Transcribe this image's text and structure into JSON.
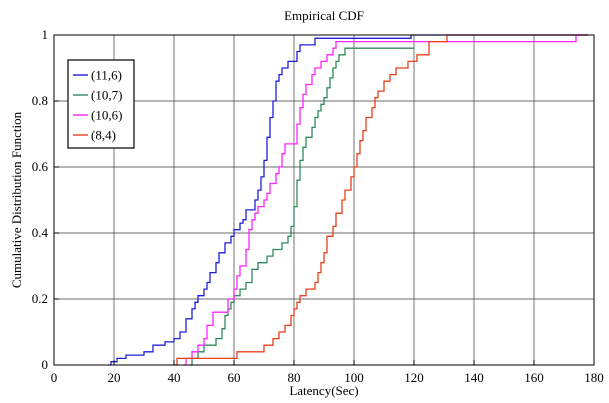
{
  "chart_data": {
    "type": "line",
    "title": "Empirical CDF",
    "xlabel": "Latency(Sec)",
    "ylabel": "Cumulative Distribution Function",
    "xlim": [
      0,
      180
    ],
    "ylim": [
      0,
      1
    ],
    "x_ticks": [
      0,
      20,
      40,
      60,
      80,
      100,
      120,
      140,
      160,
      180
    ],
    "y_ticks": [
      0,
      0.2,
      0.4,
      0.6,
      0.8,
      1
    ],
    "x_tick_labels": [
      "0",
      "20",
      "40",
      "60",
      "80",
      "100",
      "120",
      "140",
      "160",
      "180"
    ],
    "y_tick_labels": [
      "0",
      "0.2",
      "0.4",
      "0.6",
      "0.8",
      "1"
    ],
    "grid": true,
    "legend_position": "top-left",
    "step": true,
    "series": [
      {
        "name": "(11,6)",
        "color": "#1f1fdc",
        "points": [
          [
            18,
            0
          ],
          [
            19,
            0.01
          ],
          [
            21,
            0.02
          ],
          [
            24,
            0.03
          ],
          [
            30,
            0.04
          ],
          [
            33,
            0.06
          ],
          [
            37,
            0.07
          ],
          [
            40,
            0.08
          ],
          [
            42,
            0.1
          ],
          [
            44,
            0.14
          ],
          [
            46,
            0.17
          ],
          [
            47,
            0.19
          ],
          [
            48,
            0.21
          ],
          [
            50,
            0.23
          ],
          [
            51,
            0.25
          ],
          [
            52,
            0.28
          ],
          [
            54,
            0.31
          ],
          [
            55,
            0.34
          ],
          [
            57,
            0.37
          ],
          [
            59,
            0.39
          ],
          [
            60,
            0.41
          ],
          [
            62,
            0.43
          ],
          [
            63,
            0.44
          ],
          [
            64,
            0.47
          ],
          [
            67,
            0.5
          ],
          [
            68,
            0.53
          ],
          [
            69,
            0.57
          ],
          [
            70,
            0.62
          ],
          [
            71,
            0.69
          ],
          [
            72,
            0.75
          ],
          [
            73,
            0.8
          ],
          [
            74,
            0.86
          ],
          [
            75,
            0.88
          ],
          [
            76,
            0.9
          ],
          [
            78,
            0.92
          ],
          [
            81,
            0.95
          ],
          [
            82,
            0.97
          ],
          [
            87,
            0.99
          ],
          [
            119,
            1
          ],
          [
            178,
            1
          ]
        ]
      },
      {
        "name": "(10,7)",
        "color": "#2e8a5c",
        "points": [
          [
            45,
            0
          ],
          [
            46,
            0.02
          ],
          [
            48,
            0.04
          ],
          [
            50,
            0.06
          ],
          [
            54,
            0.08
          ],
          [
            56,
            0.11
          ],
          [
            57,
            0.15
          ],
          [
            58,
            0.17
          ],
          [
            59,
            0.19
          ],
          [
            60,
            0.21
          ],
          [
            62,
            0.23
          ],
          [
            64,
            0.25
          ],
          [
            66,
            0.29
          ],
          [
            68,
            0.31
          ],
          [
            71,
            0.33
          ],
          [
            73,
            0.35
          ],
          [
            76,
            0.37
          ],
          [
            78,
            0.39
          ],
          [
            79,
            0.42
          ],
          [
            80,
            0.48
          ],
          [
            81,
            0.56
          ],
          [
            82,
            0.62
          ],
          [
            83,
            0.66
          ],
          [
            84,
            0.69
          ],
          [
            86,
            0.72
          ],
          [
            87,
            0.75
          ],
          [
            88,
            0.77
          ],
          [
            89,
            0.79
          ],
          [
            90,
            0.81
          ],
          [
            91,
            0.84
          ],
          [
            92,
            0.87
          ],
          [
            93,
            0.9
          ],
          [
            94,
            0.92
          ],
          [
            95,
            0.94
          ],
          [
            97,
            0.96
          ],
          [
            120,
            0.96
          ]
        ]
      },
      {
        "name": "(10,6)",
        "color": "#ff22ff",
        "points": [
          [
            43,
            0
          ],
          [
            44,
            0.02
          ],
          [
            46,
            0.04
          ],
          [
            48,
            0.06
          ],
          [
            50,
            0.08
          ],
          [
            51,
            0.12
          ],
          [
            53,
            0.16
          ],
          [
            58,
            0.2
          ],
          [
            60,
            0.23
          ],
          [
            61,
            0.27
          ],
          [
            62,
            0.3
          ],
          [
            64,
            0.35
          ],
          [
            65,
            0.41
          ],
          [
            66,
            0.44
          ],
          [
            67,
            0.46
          ],
          [
            68,
            0.48
          ],
          [
            70,
            0.5
          ],
          [
            71,
            0.52
          ],
          [
            72,
            0.55
          ],
          [
            74,
            0.58
          ],
          [
            75,
            0.6
          ],
          [
            76,
            0.64
          ],
          [
            77,
            0.67
          ],
          [
            81,
            0.73
          ],
          [
            82,
            0.78
          ],
          [
            83,
            0.82
          ],
          [
            84,
            0.85
          ],
          [
            86,
            0.88
          ],
          [
            87,
            0.9
          ],
          [
            89,
            0.92
          ],
          [
            91,
            0.94
          ],
          [
            93,
            0.96
          ],
          [
            94,
            0.98
          ],
          [
            120,
            0.98
          ],
          [
            173,
            0.98
          ],
          [
            174,
            1
          ],
          [
            178,
            1
          ]
        ]
      },
      {
        "name": "(8,4)",
        "color": "#e8401a",
        "points": [
          [
            40,
            0
          ],
          [
            41,
            0.02
          ],
          [
            61,
            0.04
          ],
          [
            70,
            0.06
          ],
          [
            73,
            0.08
          ],
          [
            75,
            0.1
          ],
          [
            77,
            0.12
          ],
          [
            79,
            0.15
          ],
          [
            80,
            0.17
          ],
          [
            81,
            0.19
          ],
          [
            82,
            0.21
          ],
          [
            84,
            0.23
          ],
          [
            87,
            0.25
          ],
          [
            88,
            0.28
          ],
          [
            89,
            0.31
          ],
          [
            90,
            0.34
          ],
          [
            91,
            0.39
          ],
          [
            93,
            0.42
          ],
          [
            94,
            0.46
          ],
          [
            96,
            0.5
          ],
          [
            97,
            0.53
          ],
          [
            99,
            0.57
          ],
          [
            100,
            0.6
          ],
          [
            101,
            0.64
          ],
          [
            102,
            0.68
          ],
          [
            103,
            0.71
          ],
          [
            104,
            0.75
          ],
          [
            106,
            0.78
          ],
          [
            107,
            0.81
          ],
          [
            108,
            0.83
          ],
          [
            110,
            0.86
          ],
          [
            112,
            0.88
          ],
          [
            114,
            0.9
          ],
          [
            118,
            0.92
          ],
          [
            121,
            0.94
          ],
          [
            125,
            0.98
          ],
          [
            131,
            1
          ],
          [
            178,
            1
          ]
        ]
      }
    ]
  }
}
